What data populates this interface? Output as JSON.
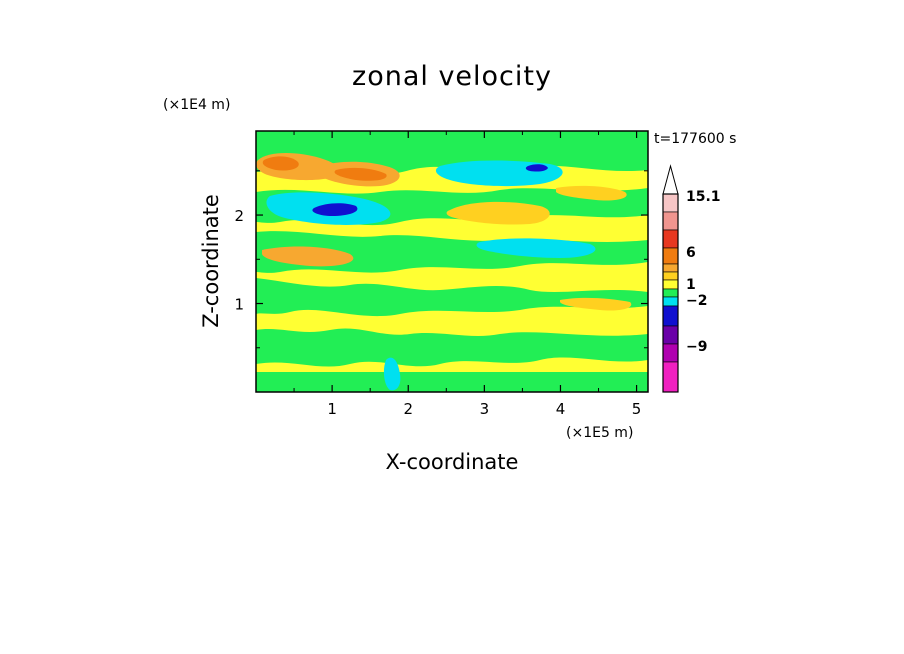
{
  "chart_data": {
    "type": "heatmap",
    "title": "zonal velocity",
    "xlabel": "X-coordinate",
    "ylabel": "Z-coordinate",
    "x_scale_note": "(×1E5 m)",
    "y_scale_note": "(×1E4 m)",
    "time_label": "t=177600 s",
    "xlim": [
      0,
      5.15
    ],
    "ylim": [
      0,
      2.95
    ],
    "x_ticks": [
      1,
      2,
      3,
      4,
      5
    ],
    "x_tick_labels": [
      "1",
      "2",
      "3",
      "4",
      "5"
    ],
    "y_ticks": [
      1,
      2
    ],
    "y_tick_labels": [
      "1",
      "2"
    ],
    "colorbar": {
      "tick_labels": [
        "15.1",
        "6",
        "1",
        "−2",
        "−9"
      ],
      "tick_values": [
        15.1,
        6,
        1,
        -2,
        -9
      ],
      "colors_top_to_bottom": [
        "#f7c6c6",
        "#f0958f",
        "#e83820",
        "#f07c10",
        "#f7a830",
        "#ffd020",
        "#ffff33",
        "#22ee55",
        "#00e0f0",
        "#1010d0",
        "#6a00a8",
        "#b000b0",
        "#f020c0"
      ],
      "extend": "max"
    },
    "colors": {
      "yellow": "#ffff33",
      "gold": "#ffd020",
      "orange": "#f7a830",
      "dark_orange": "#f07c10",
      "green": "#22ee55",
      "cyan": "#00e0f0",
      "blue": "#1010d0"
    }
  }
}
